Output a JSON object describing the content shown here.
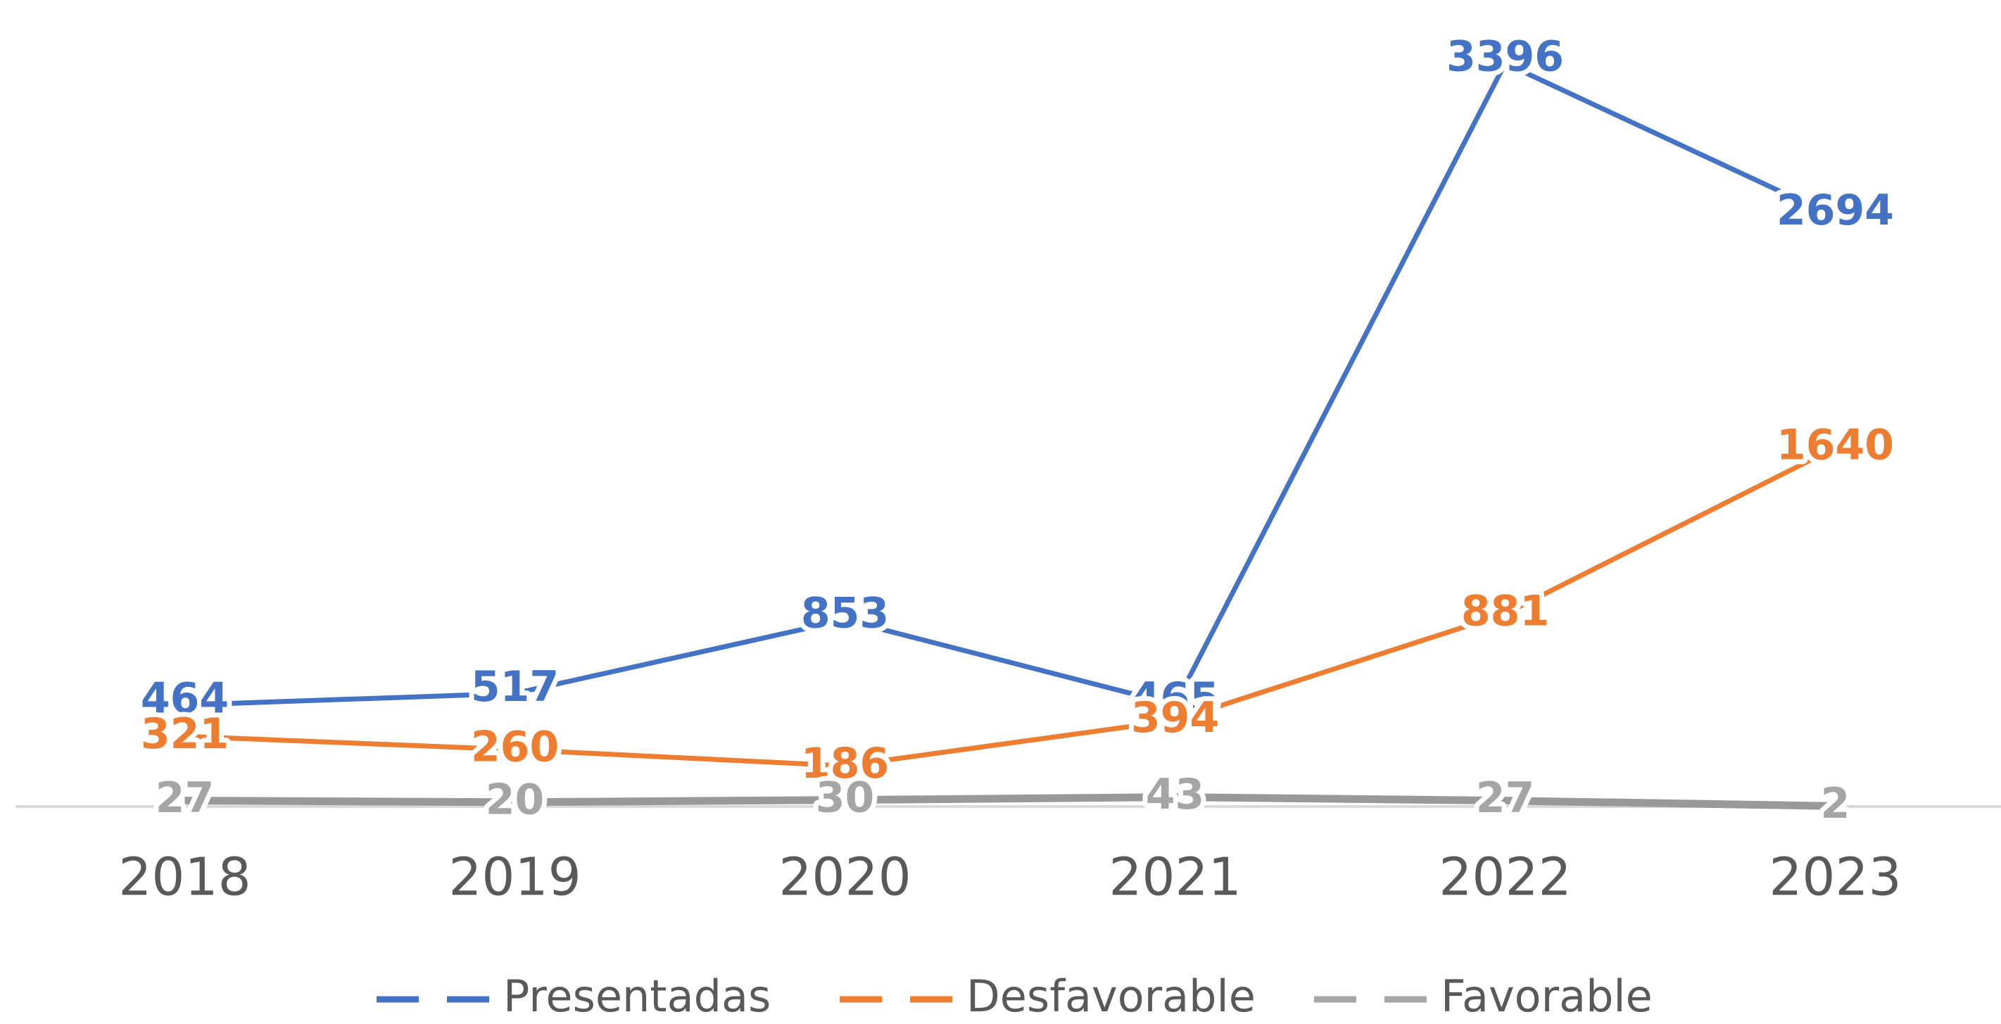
{
  "chart_data": {
    "type": "line",
    "categories": [
      "2018",
      "2019",
      "2020",
      "2021",
      "2022",
      "2023"
    ],
    "series": [
      {
        "name": "Presentadas",
        "color": "#4472c4",
        "values": [
          464,
          517,
          853,
          465,
          3396,
          2694
        ]
      },
      {
        "name": "Desfavorable",
        "color": "#ed7d31",
        "values": [
          321,
          260,
          186,
          394,
          881,
          1640
        ]
      },
      {
        "name": "Favorable",
        "color": "#a5a5a5",
        "values": [
          27,
          20,
          30,
          43,
          27,
          2
        ]
      }
    ],
    "legend": "bottom"
  }
}
